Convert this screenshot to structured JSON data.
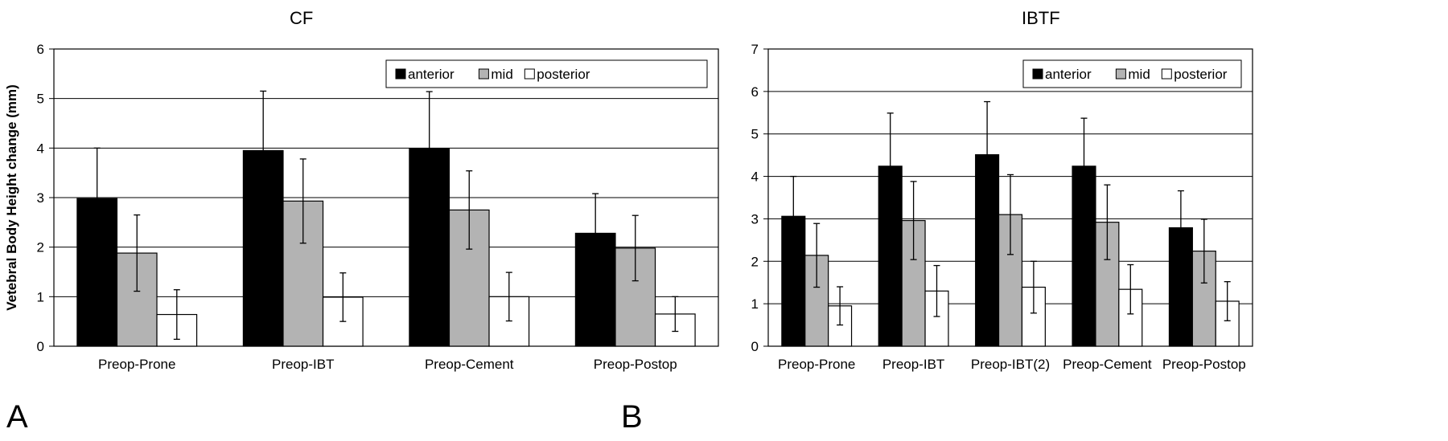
{
  "chart_data": [
    {
      "type": "bar",
      "panel": "A",
      "title": "CF",
      "ylabel": "Vetebral Body Height change (mm)",
      "xlabel": "",
      "ylim": [
        0,
        6
      ],
      "yticks": [
        0,
        1,
        2,
        3,
        4,
        5,
        6
      ],
      "grid": true,
      "legend": "top-right",
      "categories": [
        "Preop-Prone",
        "Preop-IBT",
        "Preop-Cement",
        "Preop-Postop"
      ],
      "series": [
        {
          "name": "anterior",
          "color": "#000000",
          "values": [
            2.98,
            3.95,
            3.99,
            2.28
          ],
          "error": [
            1.02,
            1.2,
            1.15,
            0.8
          ]
        },
        {
          "name": "mid",
          "color": "#b3b3b3",
          "values": [
            1.88,
            2.93,
            2.75,
            1.98
          ],
          "error": [
            0.77,
            0.85,
            0.79,
            0.66
          ]
        },
        {
          "name": "posterior",
          "color": "#ffffff",
          "values": [
            0.64,
            0.99,
            1.0,
            0.65
          ],
          "error": [
            0.5,
            0.49,
            0.49,
            0.35
          ]
        }
      ]
    },
    {
      "type": "bar",
      "panel": "B",
      "title": "IBTF",
      "ylabel": "Vetebral Body Height change (mm)",
      "xlabel": "",
      "ylim": [
        0,
        7
      ],
      "yticks": [
        0,
        1,
        2,
        3,
        4,
        5,
        6,
        7
      ],
      "grid": true,
      "legend": "top-right",
      "categories": [
        "Preop-Prone",
        "Preop-IBT",
        "Preop-IBT(2)",
        "Preop-Cement",
        "Preop-Postop"
      ],
      "series": [
        {
          "name": "anterior",
          "color": "#000000",
          "values": [
            3.06,
            4.24,
            4.51,
            4.24,
            2.79
          ],
          "error": [
            0.94,
            1.25,
            1.25,
            1.13,
            0.87
          ]
        },
        {
          "name": "mid",
          "color": "#b3b3b3",
          "values": [
            2.14,
            2.96,
            3.1,
            2.92,
            2.24
          ],
          "error": [
            0.75,
            0.92,
            0.94,
            0.88,
            0.75
          ]
        },
        {
          "name": "posterior",
          "color": "#ffffff",
          "values": [
            0.95,
            1.3,
            1.39,
            1.34,
            1.06
          ],
          "error": [
            0.45,
            0.6,
            0.61,
            0.58,
            0.46
          ]
        }
      ]
    }
  ]
}
